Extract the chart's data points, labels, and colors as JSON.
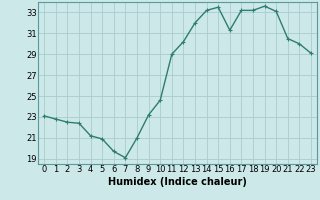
{
  "x": [
    0,
    1,
    2,
    3,
    4,
    5,
    6,
    7,
    8,
    9,
    10,
    11,
    12,
    13,
    14,
    15,
    16,
    17,
    18,
    19,
    20,
    21,
    22,
    23
  ],
  "y": [
    23.1,
    22.8,
    22.5,
    22.4,
    21.2,
    20.9,
    19.7,
    19.1,
    21.0,
    23.2,
    24.6,
    29.0,
    30.2,
    32.0,
    33.2,
    33.5,
    31.3,
    33.2,
    33.2,
    33.6,
    33.1,
    30.5,
    30.0,
    29.1
  ],
  "line_color": "#2e7d6e",
  "marker": "+",
  "marker_size": 3,
  "marker_linewidth": 0.8,
  "bg_color": "#cce8e8",
  "grid_color": "#aacccc",
  "xlabel": "Humidex (Indice chaleur)",
  "xlim": [
    -0.5,
    23.5
  ],
  "ylim": [
    18.5,
    34.0
  ],
  "yticks": [
    19,
    21,
    23,
    25,
    27,
    29,
    31,
    33
  ],
  "xticks": [
    0,
    1,
    2,
    3,
    4,
    5,
    6,
    7,
    8,
    9,
    10,
    11,
    12,
    13,
    14,
    15,
    16,
    17,
    18,
    19,
    20,
    21,
    22,
    23
  ],
  "xlabel_fontsize": 7,
  "tick_fontsize": 6,
  "line_width": 1.0
}
